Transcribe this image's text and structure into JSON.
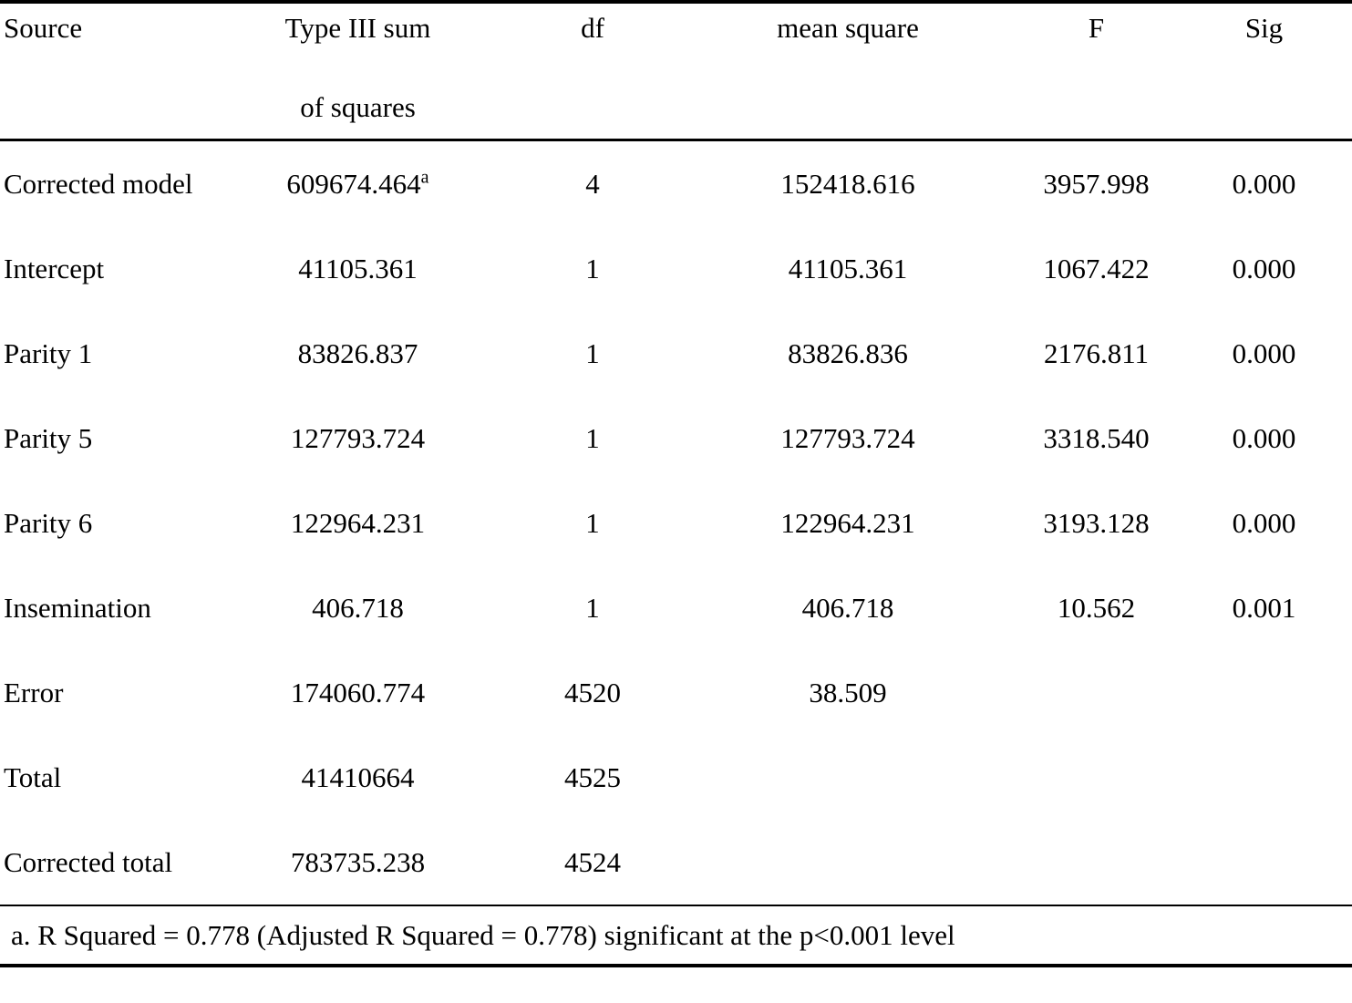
{
  "page": {
    "background_color": "#ffffff",
    "text_color": "#000000",
    "rule_color": "#000000"
  },
  "table": {
    "headers": {
      "source": "Source",
      "ss_line1": "Type III sum",
      "ss_line2": "of squares",
      "df": "df",
      "mean_square": "mean square",
      "f": "F",
      "sig": "Sig"
    },
    "rows": [
      {
        "source": "Corrected model",
        "ss": "609674.464",
        "ss_sup": "a",
        "df": "4",
        "ms": "152418.616",
        "f": "3957.998",
        "sig": "0.000"
      },
      {
        "source": "Intercept",
        "ss": "41105.361",
        "df": "1",
        "ms": "41105.361",
        "f": "1067.422",
        "sig": "0.000"
      },
      {
        "source": "Parity 1",
        "ss": "83826.837",
        "df": "1",
        "ms": "83826.836",
        "f": "2176.811",
        "sig": "0.000"
      },
      {
        "source": "Parity 5",
        "ss": "127793.724",
        "df": "1",
        "ms": "127793.724",
        "f": "3318.540",
        "sig": "0.000"
      },
      {
        "source": "Parity 6",
        "ss": "122964.231",
        "df": "1",
        "ms": "122964.231",
        "f": "3193.128",
        "sig": "0.000"
      },
      {
        "source": "Insemination",
        "ss": "406.718",
        "df": "1",
        "ms": "406.718",
        "f": "10.562",
        "sig": "0.001"
      },
      {
        "source": "Error",
        "ss": "174060.774",
        "df": "4520",
        "ms": "38.509",
        "f": "",
        "sig": ""
      },
      {
        "source": "Total",
        "ss": "41410664",
        "df": "4525",
        "ms": "",
        "f": "",
        "sig": ""
      },
      {
        "source": "Corrected total",
        "ss": "783735.238",
        "df": "4524",
        "ms": "",
        "f": "",
        "sig": ""
      }
    ],
    "footnote": "a. R Squared = 0.778 (Adjusted R Squared = 0.778) significant at the p<0.001 level"
  }
}
